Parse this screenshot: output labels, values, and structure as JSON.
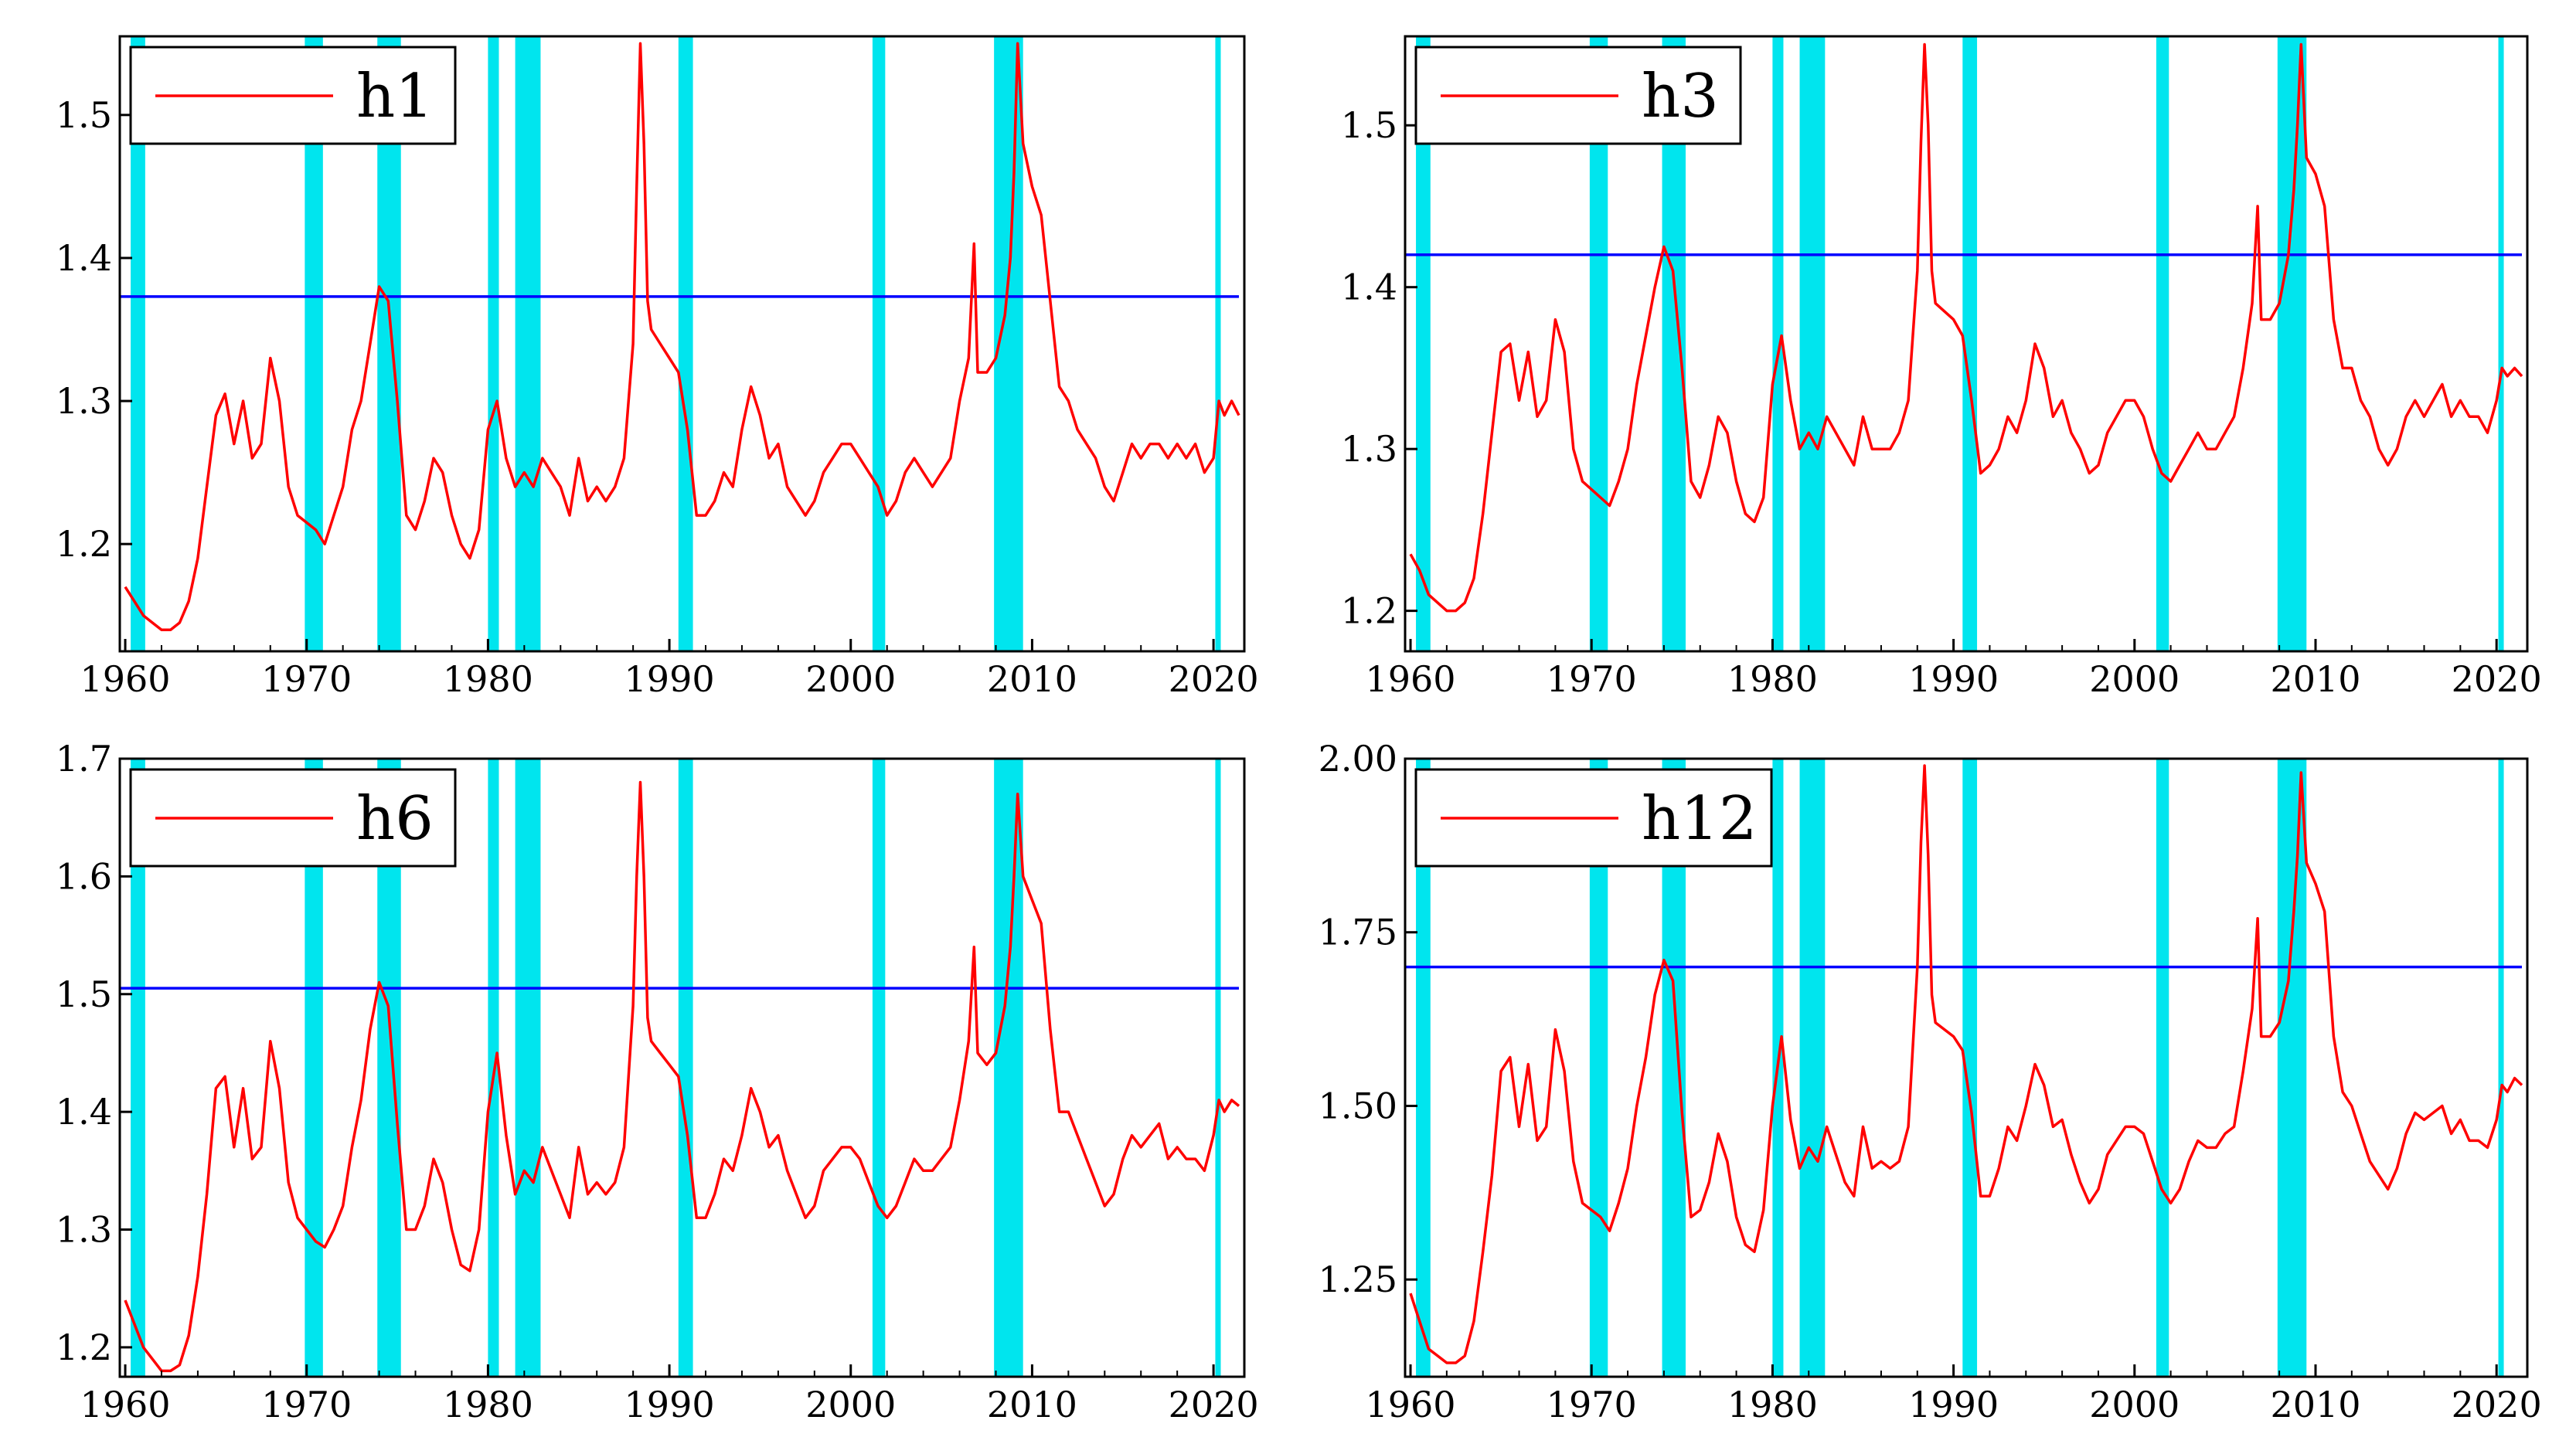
{
  "figure": {
    "x_ticks": [
      "1960",
      "1970",
      "1980",
      "1990",
      "2000",
      "2010",
      "2020"
    ],
    "x_tick_values": [
      1960,
      1970,
      1980,
      1990,
      2000,
      2010,
      2020
    ],
    "xlim": [
      1959.7,
      2021.7
    ],
    "colors": {
      "series": "#ff0000",
      "threshold": "#0000ff",
      "shading": "#00e5ee",
      "axes": "#000000"
    }
  },
  "chart_data": [
    {
      "type": "line",
      "title": "",
      "legend": "h1",
      "legend_placement": "top-left",
      "ylim": [
        1.125,
        1.555
      ],
      "yticks": [
        1.2,
        1.3,
        1.4,
        1.5
      ],
      "ytick_labels": [
        "1.2",
        "1.3",
        "1.4",
        "1.5"
      ],
      "threshold": 1.373,
      "recessions": [
        [
          1960.3,
          1961.1
        ],
        [
          1969.9,
          1970.9
        ],
        [
          1973.9,
          1975.2
        ],
        [
          1980.0,
          1980.6
        ],
        [
          1981.5,
          1982.9
        ],
        [
          1990.5,
          1991.3
        ],
        [
          2001.2,
          2001.9
        ],
        [
          2007.9,
          2009.5
        ],
        [
          2020.1,
          2020.4
        ]
      ],
      "x": [
        1960.0,
        1960.5,
        1961.0,
        1961.5,
        1962.0,
        1962.5,
        1963.0,
        1963.5,
        1964.0,
        1964.5,
        1965.0,
        1965.5,
        1966.0,
        1966.5,
        1967.0,
        1967.5,
        1968.0,
        1968.5,
        1969.0,
        1969.5,
        1970.0,
        1970.5,
        1971.0,
        1971.5,
        1972.0,
        1972.5,
        1973.0,
        1973.5,
        1974.0,
        1974.5,
        1975.0,
        1975.5,
        1976.0,
        1976.5,
        1977.0,
        1977.5,
        1978.0,
        1978.5,
        1979.0,
        1979.5,
        1980.0,
        1980.5,
        1981.0,
        1981.5,
        1982.0,
        1982.5,
        1983.0,
        1983.5,
        1984.0,
        1984.5,
        1985.0,
        1985.5,
        1986.0,
        1986.5,
        1987.0,
        1987.5,
        1988.0,
        1988.2,
        1988.4,
        1988.6,
        1988.8,
        1989.0,
        1989.5,
        1990.0,
        1990.5,
        1991.0,
        1991.5,
        1992.0,
        1992.5,
        1993.0,
        1993.5,
        1994.0,
        1994.5,
        1995.0,
        1995.5,
        1996.0,
        1996.5,
        1997.0,
        1997.5,
        1998.0,
        1998.5,
        1999.0,
        1999.5,
        2000.0,
        2000.5,
        2001.0,
        2001.5,
        2002.0,
        2002.5,
        2003.0,
        2003.5,
        2004.0,
        2004.5,
        2005.0,
        2005.5,
        2006.0,
        2006.5,
        2006.8,
        2007.0,
        2007.5,
        2008.0,
        2008.5,
        2008.8,
        2009.0,
        2009.2,
        2009.5,
        2010.0,
        2010.5,
        2011.0,
        2011.5,
        2012.0,
        2012.5,
        2013.0,
        2013.5,
        2014.0,
        2014.5,
        2015.0,
        2015.5,
        2016.0,
        2016.5,
        2017.0,
        2017.5,
        2018.0,
        2018.5,
        2019.0,
        2019.5,
        2020.0,
        2020.3,
        2020.6,
        2021.0,
        2021.4
      ],
      "y": [
        1.17,
        1.16,
        1.15,
        1.145,
        1.14,
        1.14,
        1.145,
        1.16,
        1.19,
        1.24,
        1.29,
        1.305,
        1.27,
        1.3,
        1.26,
        1.27,
        1.33,
        1.3,
        1.24,
        1.22,
        1.215,
        1.21,
        1.2,
        1.22,
        1.24,
        1.28,
        1.3,
        1.34,
        1.38,
        1.37,
        1.3,
        1.22,
        1.21,
        1.23,
        1.26,
        1.25,
        1.22,
        1.2,
        1.19,
        1.21,
        1.28,
        1.3,
        1.26,
        1.24,
        1.25,
        1.24,
        1.26,
        1.25,
        1.24,
        1.22,
        1.26,
        1.23,
        1.24,
        1.23,
        1.24,
        1.26,
        1.34,
        1.45,
        1.55,
        1.48,
        1.37,
        1.35,
        1.34,
        1.33,
        1.32,
        1.28,
        1.22,
        1.22,
        1.23,
        1.25,
        1.24,
        1.28,
        1.31,
        1.29,
        1.26,
        1.27,
        1.24,
        1.23,
        1.22,
        1.23,
        1.25,
        1.26,
        1.27,
        1.27,
        1.26,
        1.25,
        1.24,
        1.22,
        1.23,
        1.25,
        1.26,
        1.25,
        1.24,
        1.25,
        1.26,
        1.3,
        1.33,
        1.41,
        1.32,
        1.32,
        1.33,
        1.36,
        1.4,
        1.46,
        1.55,
        1.48,
        1.45,
        1.43,
        1.37,
        1.31,
        1.3,
        1.28,
        1.27,
        1.26,
        1.24,
        1.23,
        1.25,
        1.27,
        1.26,
        1.27,
        1.27,
        1.26,
        1.27,
        1.26,
        1.27,
        1.25,
        1.26,
        1.3,
        1.29,
        1.3,
        1.29
      ]
    },
    {
      "type": "line",
      "title": "",
      "legend": "h3",
      "legend_placement": "top-left",
      "ylim": [
        1.175,
        1.555
      ],
      "yticks": [
        1.2,
        1.3,
        1.4,
        1.5
      ],
      "ytick_labels": [
        "1.2",
        "1.3",
        "1.4",
        "1.5"
      ],
      "threshold": 1.42,
      "recessions": [
        [
          1960.3,
          1961.1
        ],
        [
          1969.9,
          1970.9
        ],
        [
          1973.9,
          1975.2
        ],
        [
          1980.0,
          1980.6
        ],
        [
          1981.5,
          1982.9
        ],
        [
          1990.5,
          1991.3
        ],
        [
          2001.2,
          2001.9
        ],
        [
          2007.9,
          2009.5
        ],
        [
          2020.1,
          2020.4
        ]
      ],
      "x": [
        1960.0,
        1960.5,
        1961.0,
        1961.5,
        1962.0,
        1962.5,
        1963.0,
        1963.5,
        1964.0,
        1964.5,
        1965.0,
        1965.5,
        1966.0,
        1966.5,
        1967.0,
        1967.5,
        1968.0,
        1968.5,
        1969.0,
        1969.5,
        1970.0,
        1970.5,
        1971.0,
        1971.5,
        1972.0,
        1972.5,
        1973.0,
        1973.5,
        1974.0,
        1974.5,
        1975.0,
        1975.5,
        1976.0,
        1976.5,
        1977.0,
        1977.5,
        1978.0,
        1978.5,
        1979.0,
        1979.5,
        1980.0,
        1980.5,
        1981.0,
        1981.5,
        1982.0,
        1982.5,
        1983.0,
        1983.5,
        1984.0,
        1984.5,
        1985.0,
        1985.5,
        1986.0,
        1986.5,
        1987.0,
        1987.5,
        1988.0,
        1988.2,
        1988.4,
        1988.6,
        1988.8,
        1989.0,
        1989.5,
        1990.0,
        1990.5,
        1991.0,
        1991.5,
        1992.0,
        1992.5,
        1993.0,
        1993.5,
        1994.0,
        1994.5,
        1995.0,
        1995.5,
        1996.0,
        1996.5,
        1997.0,
        1997.5,
        1998.0,
        1998.5,
        1999.0,
        1999.5,
        2000.0,
        2000.5,
        2001.0,
        2001.5,
        2002.0,
        2002.5,
        2003.0,
        2003.5,
        2004.0,
        2004.5,
        2005.0,
        2005.5,
        2006.0,
        2006.5,
        2006.8,
        2007.0,
        2007.5,
        2008.0,
        2008.5,
        2008.8,
        2009.0,
        2009.2,
        2009.5,
        2010.0,
        2010.5,
        2011.0,
        2011.5,
        2012.0,
        2012.5,
        2013.0,
        2013.5,
        2014.0,
        2014.5,
        2015.0,
        2015.5,
        2016.0,
        2016.5,
        2017.0,
        2017.5,
        2018.0,
        2018.5,
        2019.0,
        2019.5,
        2020.0,
        2020.3,
        2020.6,
        2021.0,
        2021.4
      ],
      "y": [
        1.235,
        1.225,
        1.21,
        1.205,
        1.2,
        1.2,
        1.205,
        1.22,
        1.26,
        1.31,
        1.36,
        1.365,
        1.33,
        1.36,
        1.32,
        1.33,
        1.38,
        1.36,
        1.3,
        1.28,
        1.275,
        1.27,
        1.265,
        1.28,
        1.3,
        1.34,
        1.37,
        1.4,
        1.425,
        1.41,
        1.35,
        1.28,
        1.27,
        1.29,
        1.32,
        1.31,
        1.28,
        1.26,
        1.255,
        1.27,
        1.34,
        1.37,
        1.33,
        1.3,
        1.31,
        1.3,
        1.32,
        1.31,
        1.3,
        1.29,
        1.32,
        1.3,
        1.3,
        1.3,
        1.31,
        1.33,
        1.41,
        1.49,
        1.55,
        1.5,
        1.41,
        1.39,
        1.385,
        1.38,
        1.37,
        1.33,
        1.285,
        1.29,
        1.3,
        1.32,
        1.31,
        1.33,
        1.365,
        1.35,
        1.32,
        1.33,
        1.31,
        1.3,
        1.285,
        1.29,
        1.31,
        1.32,
        1.33,
        1.33,
        1.32,
        1.3,
        1.285,
        1.28,
        1.29,
        1.3,
        1.31,
        1.3,
        1.3,
        1.31,
        1.32,
        1.35,
        1.39,
        1.45,
        1.38,
        1.38,
        1.39,
        1.42,
        1.46,
        1.5,
        1.55,
        1.48,
        1.47,
        1.45,
        1.38,
        1.35,
        1.35,
        1.33,
        1.32,
        1.3,
        1.29,
        1.3,
        1.32,
        1.33,
        1.32,
        1.33,
        1.34,
        1.32,
        1.33,
        1.32,
        1.32,
        1.31,
        1.33,
        1.35,
        1.345,
        1.35,
        1.345
      ]
    },
    {
      "type": "line",
      "title": "",
      "legend": "h6",
      "legend_placement": "top-left",
      "ylim": [
        1.175,
        1.7
      ],
      "yticks": [
        1.2,
        1.3,
        1.4,
        1.5,
        1.6,
        1.7
      ],
      "ytick_labels": [
        "1.2",
        "1.3",
        "1.4",
        "1.5",
        "1.6",
        "1.7"
      ],
      "threshold": 1.505,
      "recessions": [
        [
          1960.3,
          1961.1
        ],
        [
          1969.9,
          1970.9
        ],
        [
          1973.9,
          1975.2
        ],
        [
          1980.0,
          1980.6
        ],
        [
          1981.5,
          1982.9
        ],
        [
          1990.5,
          1991.3
        ],
        [
          2001.2,
          2001.9
        ],
        [
          2007.9,
          2009.5
        ],
        [
          2020.1,
          2020.4
        ]
      ],
      "x": [
        1960.0,
        1960.5,
        1961.0,
        1961.5,
        1962.0,
        1962.5,
        1963.0,
        1963.5,
        1964.0,
        1964.5,
        1965.0,
        1965.5,
        1966.0,
        1966.5,
        1967.0,
        1967.5,
        1968.0,
        1968.5,
        1969.0,
        1969.5,
        1970.0,
        1970.5,
        1971.0,
        1971.5,
        1972.0,
        1972.5,
        1973.0,
        1973.5,
        1974.0,
        1974.5,
        1975.0,
        1975.5,
        1976.0,
        1976.5,
        1977.0,
        1977.5,
        1978.0,
        1978.5,
        1979.0,
        1979.5,
        1980.0,
        1980.5,
        1981.0,
        1981.5,
        1982.0,
        1982.5,
        1983.0,
        1983.5,
        1984.0,
        1984.5,
        1985.0,
        1985.5,
        1986.0,
        1986.5,
        1987.0,
        1987.5,
        1988.0,
        1988.2,
        1988.4,
        1988.6,
        1988.8,
        1989.0,
        1989.5,
        1990.0,
        1990.5,
        1991.0,
        1991.5,
        1992.0,
        1992.5,
        1993.0,
        1993.5,
        1994.0,
        1994.5,
        1995.0,
        1995.5,
        1996.0,
        1996.5,
        1997.0,
        1997.5,
        1998.0,
        1998.5,
        1999.0,
        1999.5,
        2000.0,
        2000.5,
        2001.0,
        2001.5,
        2002.0,
        2002.5,
        2003.0,
        2003.5,
        2004.0,
        2004.5,
        2005.0,
        2005.5,
        2006.0,
        2006.5,
        2006.8,
        2007.0,
        2007.5,
        2008.0,
        2008.5,
        2008.8,
        2009.0,
        2009.2,
        2009.5,
        2010.0,
        2010.5,
        2011.0,
        2011.5,
        2012.0,
        2012.5,
        2013.0,
        2013.5,
        2014.0,
        2014.5,
        2015.0,
        2015.5,
        2016.0,
        2016.5,
        2017.0,
        2017.5,
        2018.0,
        2018.5,
        2019.0,
        2019.5,
        2020.0,
        2020.3,
        2020.6,
        2021.0,
        2021.4
      ],
      "y": [
        1.24,
        1.22,
        1.2,
        1.19,
        1.18,
        1.18,
        1.185,
        1.21,
        1.26,
        1.33,
        1.42,
        1.43,
        1.37,
        1.42,
        1.36,
        1.37,
        1.46,
        1.42,
        1.34,
        1.31,
        1.3,
        1.29,
        1.285,
        1.3,
        1.32,
        1.37,
        1.41,
        1.47,
        1.51,
        1.49,
        1.39,
        1.3,
        1.3,
        1.32,
        1.36,
        1.34,
        1.3,
        1.27,
        1.265,
        1.3,
        1.4,
        1.45,
        1.38,
        1.33,
        1.35,
        1.34,
        1.37,
        1.35,
        1.33,
        1.31,
        1.37,
        1.33,
        1.34,
        1.33,
        1.34,
        1.37,
        1.49,
        1.6,
        1.68,
        1.6,
        1.48,
        1.46,
        1.45,
        1.44,
        1.43,
        1.38,
        1.31,
        1.31,
        1.33,
        1.36,
        1.35,
        1.38,
        1.42,
        1.4,
        1.37,
        1.38,
        1.35,
        1.33,
        1.31,
        1.32,
        1.35,
        1.36,
        1.37,
        1.37,
        1.36,
        1.34,
        1.32,
        1.31,
        1.32,
        1.34,
        1.36,
        1.35,
        1.35,
        1.36,
        1.37,
        1.41,
        1.46,
        1.54,
        1.45,
        1.44,
        1.45,
        1.49,
        1.54,
        1.6,
        1.67,
        1.6,
        1.58,
        1.56,
        1.47,
        1.4,
        1.4,
        1.38,
        1.36,
        1.34,
        1.32,
        1.33,
        1.36,
        1.38,
        1.37,
        1.38,
        1.39,
        1.36,
        1.37,
        1.36,
        1.36,
        1.35,
        1.38,
        1.41,
        1.4,
        1.41,
        1.405
      ]
    },
    {
      "type": "line",
      "title": "",
      "legend": "h12",
      "legend_placement": "top-left",
      "ylim": [
        1.11,
        2.0
      ],
      "yticks": [
        1.25,
        1.5,
        1.75,
        2.0
      ],
      "ytick_labels": [
        "1.25",
        "1.50",
        "1.75",
        "2.00"
      ],
      "threshold": 1.7,
      "recessions": [
        [
          1960.3,
          1961.1
        ],
        [
          1969.9,
          1970.9
        ],
        [
          1973.9,
          1975.2
        ],
        [
          1980.0,
          1980.6
        ],
        [
          1981.5,
          1982.9
        ],
        [
          1990.5,
          1991.3
        ],
        [
          2001.2,
          2001.9
        ],
        [
          2007.9,
          2009.5
        ],
        [
          2020.1,
          2020.4
        ]
      ],
      "x": [
        1960.0,
        1960.5,
        1961.0,
        1961.5,
        1962.0,
        1962.5,
        1963.0,
        1963.5,
        1964.0,
        1964.5,
        1965.0,
        1965.5,
        1966.0,
        1966.5,
        1967.0,
        1967.5,
        1968.0,
        1968.5,
        1969.0,
        1969.5,
        1970.0,
        1970.5,
        1971.0,
        1971.5,
        1972.0,
        1972.5,
        1973.0,
        1973.5,
        1974.0,
        1974.5,
        1975.0,
        1975.5,
        1976.0,
        1976.5,
        1977.0,
        1977.5,
        1978.0,
        1978.5,
        1979.0,
        1979.5,
        1980.0,
        1980.5,
        1981.0,
        1981.5,
        1982.0,
        1982.5,
        1983.0,
        1983.5,
        1984.0,
        1984.5,
        1985.0,
        1985.5,
        1986.0,
        1986.5,
        1987.0,
        1987.5,
        1988.0,
        1988.2,
        1988.4,
        1988.6,
        1988.8,
        1989.0,
        1989.5,
        1990.0,
        1990.5,
        1991.0,
        1991.5,
        1992.0,
        1992.5,
        1993.0,
        1993.5,
        1994.0,
        1994.5,
        1995.0,
        1995.5,
        1996.0,
        1996.5,
        1997.0,
        1997.5,
        1998.0,
        1998.5,
        1999.0,
        1999.5,
        2000.0,
        2000.5,
        2001.0,
        2001.5,
        2002.0,
        2002.5,
        2003.0,
        2003.5,
        2004.0,
        2004.5,
        2005.0,
        2005.5,
        2006.0,
        2006.5,
        2006.8,
        2007.0,
        2007.5,
        2008.0,
        2008.5,
        2008.8,
        2009.0,
        2009.2,
        2009.5,
        2010.0,
        2010.5,
        2011.0,
        2011.5,
        2012.0,
        2012.5,
        2013.0,
        2013.5,
        2014.0,
        2014.5,
        2015.0,
        2015.5,
        2016.0,
        2016.5,
        2017.0,
        2017.5,
        2018.0,
        2018.5,
        2019.0,
        2019.5,
        2020.0,
        2020.3,
        2020.6,
        2021.0,
        2021.4
      ],
      "y": [
        1.23,
        1.19,
        1.15,
        1.14,
        1.13,
        1.13,
        1.14,
        1.19,
        1.29,
        1.4,
        1.55,
        1.57,
        1.47,
        1.56,
        1.45,
        1.47,
        1.61,
        1.55,
        1.42,
        1.36,
        1.35,
        1.34,
        1.32,
        1.36,
        1.41,
        1.5,
        1.57,
        1.66,
        1.71,
        1.68,
        1.49,
        1.34,
        1.35,
        1.39,
        1.46,
        1.42,
        1.34,
        1.3,
        1.29,
        1.35,
        1.5,
        1.6,
        1.48,
        1.41,
        1.44,
        1.42,
        1.47,
        1.43,
        1.39,
        1.37,
        1.47,
        1.41,
        1.42,
        1.41,
        1.42,
        1.47,
        1.7,
        1.88,
        1.99,
        1.86,
        1.66,
        1.62,
        1.61,
        1.6,
        1.58,
        1.49,
        1.37,
        1.37,
        1.41,
        1.47,
        1.45,
        1.5,
        1.56,
        1.53,
        1.47,
        1.48,
        1.43,
        1.39,
        1.36,
        1.38,
        1.43,
        1.45,
        1.47,
        1.47,
        1.46,
        1.42,
        1.38,
        1.36,
        1.38,
        1.42,
        1.45,
        1.44,
        1.44,
        1.46,
        1.47,
        1.55,
        1.64,
        1.77,
        1.6,
        1.6,
        1.62,
        1.68,
        1.78,
        1.86,
        1.98,
        1.85,
        1.82,
        1.78,
        1.6,
        1.52,
        1.5,
        1.46,
        1.42,
        1.4,
        1.38,
        1.41,
        1.46,
        1.49,
        1.48,
        1.49,
        1.5,
        1.46,
        1.48,
        1.45,
        1.45,
        1.44,
        1.48,
        1.53,
        1.52,
        1.54,
        1.53
      ]
    }
  ]
}
